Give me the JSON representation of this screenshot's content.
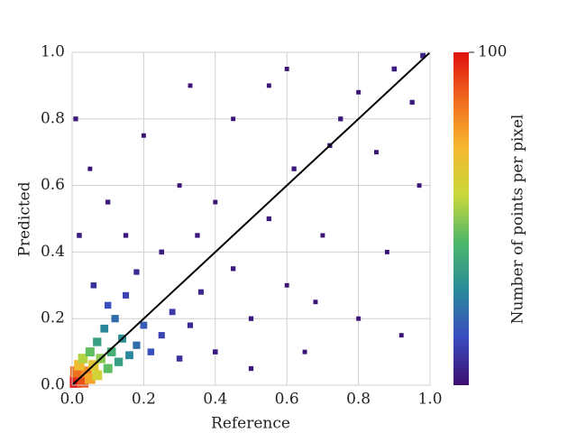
{
  "chart_data": {
    "type": "density",
    "xlabel": "Reference",
    "ylabel": "Predicted",
    "xlim": [
      0,
      1
    ],
    "ylim": [
      0,
      1
    ],
    "xticks": [
      {
        "value": 0,
        "label": "0.0"
      },
      {
        "value": 0.2,
        "label": "0.2"
      },
      {
        "value": 0.4,
        "label": "0.4"
      },
      {
        "value": 0.6,
        "label": "0.6"
      },
      {
        "value": 0.8,
        "label": "0.8"
      },
      {
        "value": 1,
        "label": "1.0"
      }
    ],
    "yticks": [
      {
        "value": 0,
        "label": "0.0"
      },
      {
        "value": 0.2,
        "label": "0.2"
      },
      {
        "value": 0.4,
        "label": "0.4"
      },
      {
        "value": 0.6,
        "label": "0.6"
      },
      {
        "value": 0.8,
        "label": "0.8"
      },
      {
        "value": 1,
        "label": "1.0"
      }
    ],
    "grid": true,
    "colormap": [
      "#3b0f70",
      "#3b4cc0",
      "#2a8a9a",
      "#4cb86a",
      "#c8d83a",
      "#f5b82e",
      "#f06a1e",
      "#e01010"
    ],
    "colorbar": {
      "label": "Number of points per pixel",
      "lim": [
        0,
        100
      ],
      "ticks": [
        100
      ]
    },
    "x": [
      0.01,
      0.02,
      0.03,
      0.01,
      0.04,
      0.05,
      0.02,
      0.06,
      0.07,
      0.03,
      0.08,
      0.1,
      0.05,
      0.11,
      0.13,
      0.07,
      0.14,
      0.16,
      0.09,
      0.18,
      0.12,
      0.2,
      0.22,
      0.1,
      0.25,
      0.15,
      0.28,
      0.3,
      0.06,
      0.33,
      0.18,
      0.36,
      0.4,
      0.45,
      0.5,
      0.55,
      0.6,
      0.62,
      0.7,
      0.75,
      0.8,
      0.85,
      0.9,
      0.95,
      0.98,
      0.97,
      0.3,
      0.2,
      0.1,
      0.02,
      0.01,
      0.45,
      0.55,
      0.65,
      0.35,
      0.25,
      0.4,
      0.72,
      0.88,
      0.5,
      0.6,
      0.8,
      0.15,
      0.33,
      0.92,
      0.68,
      0.05
    ],
    "y": [
      0.01,
      0.03,
      0.01,
      0.04,
      0.04,
      0.02,
      0.06,
      0.06,
      0.03,
      0.08,
      0.08,
      0.05,
      0.1,
      0.1,
      0.07,
      0.13,
      0.14,
      0.09,
      0.17,
      0.12,
      0.2,
      0.18,
      0.1,
      0.24,
      0.15,
      0.27,
      0.22,
      0.08,
      0.3,
      0.18,
      0.34,
      0.28,
      0.1,
      0.35,
      0.2,
      0.5,
      0.3,
      0.65,
      0.45,
      0.8,
      0.2,
      0.7,
      0.95,
      0.85,
      0.99,
      0.6,
      0.6,
      0.75,
      0.55,
      0.45,
      0.8,
      0.8,
      0.9,
      0.1,
      0.45,
      0.4,
      0.55,
      0.72,
      0.4,
      0.05,
      0.95,
      0.88,
      0.45,
      0.9,
      0.15,
      0.25,
      0.65
    ],
    "counts": [
      100,
      95,
      90,
      85,
      80,
      75,
      70,
      65,
      60,
      55,
      50,
      45,
      45,
      40,
      35,
      35,
      30,
      28,
      28,
      22,
      22,
      18,
      15,
      15,
      12,
      12,
      10,
      8,
      8,
      6,
      6,
      5,
      3,
      2,
      2,
      2,
      1,
      2,
      1,
      2,
      1,
      1,
      3,
      2,
      4,
      1,
      1,
      1,
      2,
      3,
      2,
      1,
      1,
      1,
      2,
      3,
      1,
      2,
      1,
      2,
      1,
      1,
      2,
      1,
      1,
      1,
      1
    ],
    "reference_line": {
      "x": [
        0,
        1
      ],
      "y": [
        0,
        1
      ],
      "color": "#000000"
    }
  }
}
